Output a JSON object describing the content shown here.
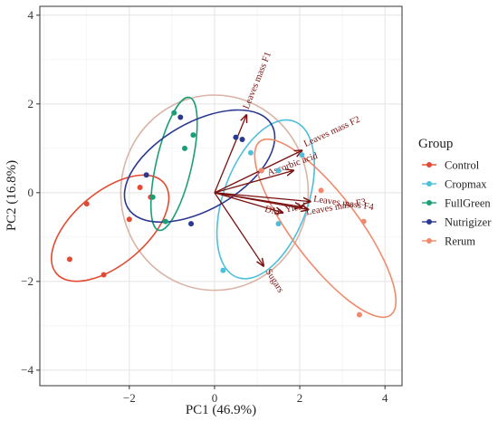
{
  "chart_data": {
    "type": "scatter",
    "xlabel": "PC1 (46.9%)",
    "ylabel": "PC2 (16.8%)",
    "xlim": [
      -4.1,
      4.4
    ],
    "ylim": [
      -4.35,
      4.2
    ],
    "xticks": [
      -2,
      0,
      2,
      4
    ],
    "yticks": [
      -4,
      -2,
      0,
      2,
      4
    ],
    "tick_labels_x": [
      "−2",
      "0",
      "2",
      "4"
    ],
    "tick_labels_y": [
      "−4",
      "−2",
      "0",
      "2",
      "4"
    ],
    "grid": true,
    "legend": {
      "title": "Group",
      "placement": "right",
      "entries": [
        "Control",
        "Cropmax",
        "FullGreen",
        "Nutrigizer",
        "Rerum"
      ]
    },
    "colors": {
      "Control": "#e24a33",
      "Cropmax": "#4fbedb",
      "FullGreen": "#1a9e78",
      "Nutrigizer": "#2b3990",
      "Rerum": "#f08a6c",
      "loading": "#7a1010",
      "circle": "#d9b3a6"
    },
    "series": [
      {
        "name": "Control",
        "points": [
          [
            -3.4,
            -1.5
          ],
          [
            -2.6,
            -1.85
          ],
          [
            -3.0,
            -0.25
          ],
          [
            -2.0,
            -0.6
          ],
          [
            -1.75,
            0.12
          ],
          [
            -1.5,
            -0.1
          ]
        ],
        "ellipse": {
          "cx": -2.45,
          "cy": -0.8,
          "rx": 1.65,
          "ry": 0.82,
          "angle": 40
        }
      },
      {
        "name": "Cropmax",
        "points": [
          [
            0.85,
            0.9
          ],
          [
            1.1,
            0.5
          ],
          [
            1.5,
            0.5
          ],
          [
            2.05,
            0.85
          ],
          [
            1.5,
            -0.7
          ],
          [
            0.2,
            -1.75
          ]
        ],
        "ellipse": {
          "cx": 1.2,
          "cy": -0.15,
          "rx": 1.95,
          "ry": 0.95,
          "angle": 70
        }
      },
      {
        "name": "FullGreen",
        "points": [
          [
            -0.95,
            1.8
          ],
          [
            -0.5,
            1.3
          ],
          [
            -0.7,
            1.0
          ],
          [
            -1.45,
            -0.1
          ],
          [
            -1.15,
            -0.65
          ]
        ],
        "ellipse": {
          "cx": -0.95,
          "cy": 0.65,
          "rx": 1.6,
          "ry": 0.4,
          "angle": 77
        }
      },
      {
        "name": "Nutrigizer",
        "points": [
          [
            -0.8,
            1.7
          ],
          [
            0.5,
            1.25
          ],
          [
            0.65,
            1.2
          ],
          [
            -1.6,
            0.4
          ],
          [
            -0.55,
            -0.7
          ]
        ],
        "ellipse": {
          "cx": -0.35,
          "cy": 0.6,
          "rx": 1.95,
          "ry": 0.98,
          "angle": 30
        }
      },
      {
        "name": "Rerum",
        "points": [
          [
            1.1,
            0.5
          ],
          [
            2.5,
            0.05
          ],
          [
            3.5,
            -0.65
          ],
          [
            3.4,
            -2.75
          ]
        ],
        "ellipse": {
          "cx": 2.6,
          "cy": -0.8,
          "rx": 2.55,
          "ry": 0.75,
          "angle": -53
        }
      }
    ],
    "circle": {
      "cx": 0,
      "cy": 0,
      "r": 2.2
    },
    "loadings": [
      {
        "label": "Leaves mass F1",
        "x": 0.75,
        "y": 1.75
      },
      {
        "label": "Leaves mass F2",
        "x": 2.05,
        "y": 0.95
      },
      {
        "label": "Ascorbic acid",
        "x": 1.85,
        "y": 0.5
      },
      {
        "label": "Leaves mass F4",
        "x": 2.25,
        "y": -0.2
      },
      {
        "label": "Leaves mass F3",
        "x": 2.2,
        "y": -0.38
      },
      {
        "label": "Yield",
        "x": 2.05,
        "y": -0.32
      },
      {
        "label": "DM",
        "x": 1.6,
        "y": -0.45
      },
      {
        "label": "Sugars",
        "x": 1.15,
        "y": -1.65
      }
    ]
  }
}
